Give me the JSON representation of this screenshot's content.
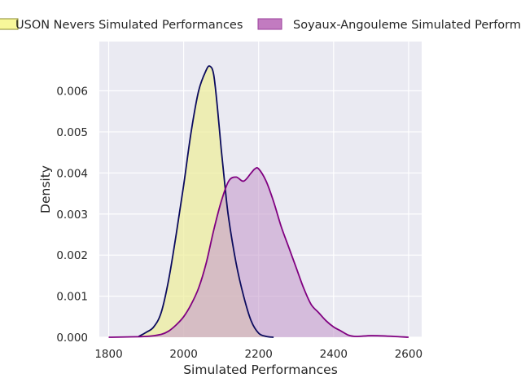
{
  "chart_data": {
    "type": "area",
    "title": "",
    "xlabel": "Simulated Performances",
    "ylabel": "Density",
    "xlim": [
      1775,
      2635
    ],
    "ylim": [
      0,
      0.0072
    ],
    "x_ticks": [
      1800,
      2000,
      2200,
      2400,
      2600
    ],
    "x_tick_labels": [
      "1800",
      "2000",
      "2200",
      "2400",
      "2600"
    ],
    "y_ticks": [
      0,
      0.001,
      0.002,
      0.003,
      0.004,
      0.005,
      0.006
    ],
    "y_tick_labels": [
      "0.000",
      "0.001",
      "0.002",
      "0.003",
      "0.004",
      "0.005",
      "0.006"
    ],
    "grid": true,
    "legend_position": "top",
    "series": [
      {
        "name": "USON Nevers Simulated Performances",
        "fill_color": "#eeee99",
        "legend_fill_color": "#f7f79a",
        "line_color": "#0b0b5e",
        "x": [
          1880,
          1900,
          1920,
          1940,
          1960,
          1980,
          2000,
          2020,
          2040,
          2060,
          2070,
          2080,
          2090,
          2100,
          2110,
          2120,
          2140,
          2160,
          2180,
          2200,
          2220,
          2240
        ],
        "y": [
          2e-05,
          0.00012,
          0.00025,
          0.0006,
          0.0014,
          0.0025,
          0.0037,
          0.005,
          0.006,
          0.0065,
          0.0066,
          0.0064,
          0.0056,
          0.0046,
          0.0037,
          0.0029,
          0.0018,
          0.001,
          0.0004,
          0.0001,
          2e-05,
          0.0
        ]
      },
      {
        "name": "Soyaux-Angouleme Simulated Performances",
        "fill_color": "#c8a0cf",
        "legend_fill_color": "#c27bc0",
        "line_color": "#800080",
        "x": [
          1800,
          1900,
          1940,
          1960,
          1980,
          2000,
          2020,
          2040,
          2060,
          2080,
          2100,
          2120,
          2140,
          2160,
          2180,
          2190,
          2200,
          2220,
          2240,
          2260,
          2280,
          2300,
          2320,
          2340,
          2360,
          2380,
          2400,
          2420,
          2440,
          2460,
          2500,
          2540,
          2600
        ],
        "y": [
          0.0,
          2e-05,
          7e-05,
          0.00015,
          0.0003,
          0.0005,
          0.0008,
          0.0012,
          0.0018,
          0.0026,
          0.0033,
          0.0038,
          0.0039,
          0.0038,
          0.004,
          0.0041,
          0.0041,
          0.0038,
          0.0033,
          0.0027,
          0.0022,
          0.0017,
          0.0012,
          0.0008,
          0.0006,
          0.0004,
          0.00025,
          0.00015,
          5e-05,
          2e-05,
          4e-05,
          3e-05,
          0.0
        ]
      }
    ]
  }
}
